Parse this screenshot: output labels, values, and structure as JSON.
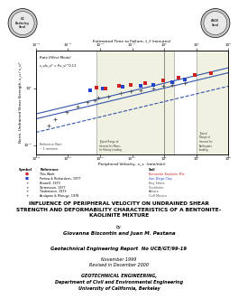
{
  "chart_data": {
    "type": "scatter",
    "log": true,
    "grid": false,
    "x_label": "Peripheral Velocity, v_s  (mm/min)",
    "x2_label": "Estimated Time to Failure, t_f (minutes)",
    "y_label": "Norm. Undrained Shear Strength, s_u / s_u*",
    "xlim": [
      0.0001,
      100
    ],
    "ylim": [
      0.07,
      4.5
    ],
    "xticks": [
      {
        "value": 0.0001,
        "label": "10⁻⁴"
      },
      {
        "value": 0.001,
        "label": "10⁻³"
      },
      {
        "value": 0.01,
        "label": "10⁻²"
      },
      {
        "value": 0.1,
        "label": "10⁻¹"
      },
      {
        "value": 1,
        "label": "10⁰"
      },
      {
        "value": 10,
        "label": "10¹"
      },
      {
        "value": 100,
        "label": "10²"
      }
    ],
    "yticks": [
      {
        "value": 0.1,
        "label": "10⁻¹"
      },
      {
        "value": 1,
        "label": "10⁰"
      }
    ],
    "shaded_ranges": [
      {
        "range": [
          0.008,
          2
        ],
        "label": "Typical Range of\nInterest for Mono-\ntic History Loading"
      },
      {
        "range": [
          10,
          100
        ],
        "label": "Typical\nRange of\nInterest for\nEarthquake\nLoading"
      }
    ],
    "reference_line": 1.0,
    "series": [
      {
        "type": "line",
        "color": "#3355aa",
        "line_style": "solid",
        "x": [
          0.0001,
          100
        ],
        "values": [
          0.2884031503,
          1.862087137
        ]
      },
      {
        "type": "line",
        "color": "#3355aa",
        "line_style": "dashed",
        "x": [
          0.0001,
          100
        ],
        "values": [
          0.1672738272,
          1.080010539
        ]
      },
      {
        "type": "line",
        "color": "#3355aa",
        "line_style": "solid",
        "x": [
          0.0001,
          100
        ],
        "values": [
          0.3518518434,
          2.271746307
        ]
      },
      {
        "type": "scatter",
        "marker": "plus",
        "color": "#555555",
        "x": [
          0.00025,
          0.0004,
          0.0009,
          0.002,
          0.004,
          0.007,
          0.009,
          0.018,
          0.045,
          0.09,
          0.18,
          0.45,
          0.9,
          1.8,
          4.5
        ],
        "values": [
          0.22,
          0.28,
          0.38,
          0.48,
          0.56,
          0.62,
          0.68,
          0.72,
          0.82,
          0.88,
          0.93,
          0.98,
          1.08,
          1.13,
          1.22
        ]
      },
      {
        "type": "scatter",
        "marker": "square",
        "color": "#2244cc",
        "x": [
          0.005,
          0.012,
          0.05,
          0.18,
          0.45,
          1.8,
          4.5
        ],
        "values": [
          0.93,
          0.97,
          1.04,
          1.09,
          1.14,
          1.28,
          1.42
        ]
      },
      {
        "type": "scatter",
        "marker": "square",
        "color": "#cc2222",
        "x": [
          0.008,
          0.015,
          0.04,
          0.09,
          0.25,
          0.9,
          2.8,
          9.0,
          28.0
        ],
        "values": [
          1.02,
          1.0,
          1.08,
          1.12,
          1.22,
          1.38,
          1.52,
          1.68,
          1.82
        ]
      }
    ],
    "annotations": {
      "model_label": "Rate Effect Model",
      "model_formula": "s_u/s_u* = f(v_s)^0.13",
      "reference_note": "Reference Rate\n~ 1 mm/min"
    },
    "legend_table": {
      "headers": [
        "Symbol",
        "Reference",
        "Soil"
      ],
      "rows": [
        {
          "symbol": "■",
          "color": "#cc2222",
          "reference": "This Work",
          "soil": "Bentonite-Kaolinite Mix"
        },
        {
          "symbol": "■",
          "color": "#2244cc",
          "reference": "Perlow & Richardson, 1977",
          "soil": "San Diego Clay"
        },
        {
          "symbol": "+",
          "color": "#555555",
          "reference": "Biswell, 1973",
          "soil": "Bay Fabric"
        },
        {
          "symbol": "+",
          "color": "#555555",
          "reference": "Tortensson, 1977",
          "soil": "Stockholm"
        },
        {
          "symbol": "+",
          "color": "#555555",
          "reference": "Tiedemann, 1973",
          "soil": "Ankara"
        },
        {
          "symbol": "+",
          "color": "#555555",
          "reference": "Arulguno & Murugp, 1978",
          "soil": "Gulf Mexico"
        }
      ]
    }
  },
  "page": {
    "logos": [
      "UC\nBerkeley\nSeal",
      "ASCE\nSeal"
    ],
    "title": "INFLUENCE OF PERIPHERAL VELOCITY ON UNDRAINED SHEAR\nSTRENGTH AND DEFORMABILITY CHARACTERISTICS OF A BENTONITE-\nKAOLINITE MIXTURE",
    "by": "by",
    "authors": "Giovanna Biscontin and Juan M. Pestana",
    "report_no": "Geotechnical Engineering Report  No UCB/GT/99-19",
    "date": "November 1999\nRevised in December 2000",
    "dept": "GEOTECHNICAL ENGINEERING,\nDepartment of Civil and Environmental Engineering\nUniversity of California, Berkeley"
  }
}
